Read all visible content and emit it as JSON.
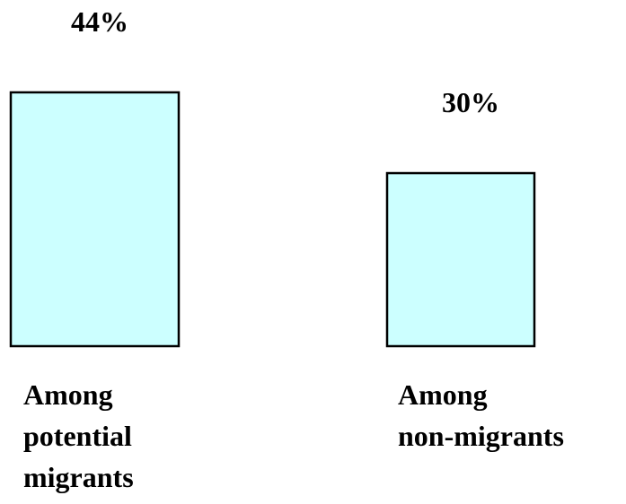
{
  "chart_data": {
    "type": "bar",
    "categories": [
      [
        "Among",
        "potential",
        "migrants"
      ],
      [
        "Among",
        "non-migrants"
      ]
    ],
    "values": [
      44,
      30
    ],
    "value_labels": [
      "44%",
      "30%"
    ],
    "title": "",
    "xlabel": "",
    "ylabel": "",
    "ylim": [
      0,
      44
    ],
    "grid": false,
    "axes_visible": false,
    "bar_fill": "#ccffff",
    "bar_stroke": "#000000"
  }
}
